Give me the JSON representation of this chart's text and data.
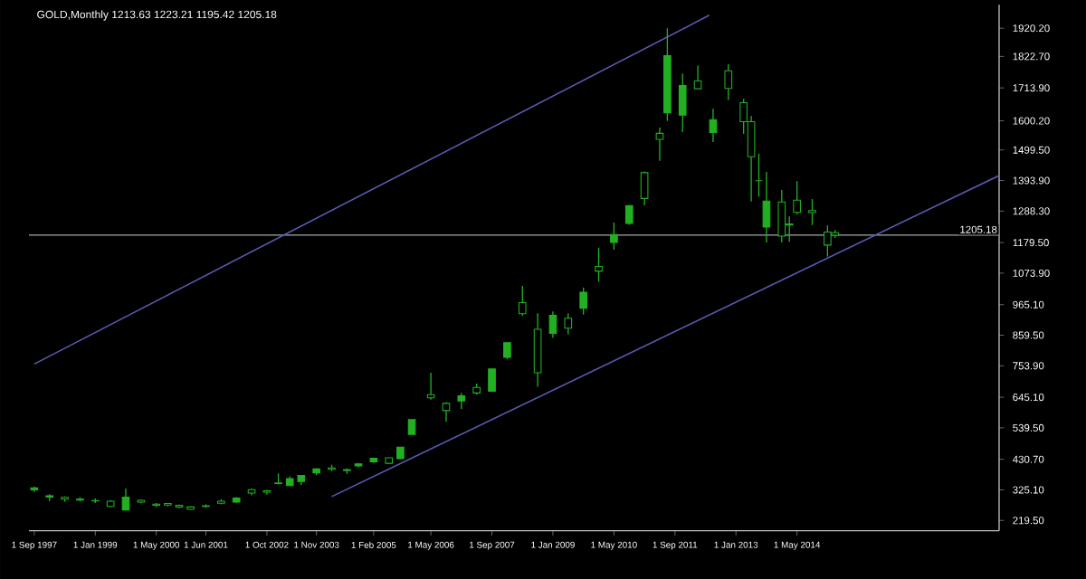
{
  "chart_data": {
    "type": "candlestick",
    "title": "GOLD,Monthly  1213.63 1223.21 1195.42 1205.18",
    "color": "#22b022",
    "x": [
      "1997-09",
      "1998-01",
      "1998-05",
      "1998-09",
      "1999-01",
      "1999-05",
      "1999-09",
      "2000-01",
      "2000-05",
      "2000-08",
      "2000-11",
      "2001-02",
      "2001-06",
      "2001-10",
      "2002-02",
      "2002-06",
      "2002-10",
      "2003-01",
      "2003-04",
      "2003-07",
      "2003-11",
      "2004-03",
      "2004-07",
      "2004-10",
      "2005-02",
      "2005-06",
      "2005-09",
      "2005-12",
      "2006-05",
      "2006-09",
      "2007-01",
      "2007-05",
      "2007-09",
      "2008-01",
      "2008-05",
      "2008-09",
      "2009-01",
      "2009-05",
      "2009-09",
      "2010-01",
      "2010-05",
      "2010-09",
      "2011-01",
      "2011-05",
      "2011-07",
      "2011-11",
      "2012-03",
      "2012-07",
      "2012-11",
      "2013-03",
      "2013-05",
      "2013-07",
      "2013-09",
      "2014-01",
      "2014-03",
      "2014-05",
      "2014-09",
      "2015-01",
      "2015-03"
    ],
    "ohlc": [
      [
        325,
        337,
        318,
        332
      ],
      [
        300,
        310,
        286,
        305
      ],
      [
        299,
        303,
        284,
        293
      ],
      [
        290,
        300,
        286,
        293
      ],
      [
        288,
        295,
        280,
        287
      ],
      [
        286,
        290,
        266,
        268
      ],
      [
        256,
        330,
        253,
        300
      ],
      [
        289,
        292,
        279,
        283
      ],
      [
        276,
        280,
        266,
        272
      ],
      [
        278,
        280,
        268,
        273
      ],
      [
        272,
        274,
        262,
        266
      ],
      [
        266,
        268,
        256,
        258
      ],
      [
        268,
        275,
        264,
        270
      ],
      [
        286,
        293,
        275,
        279
      ],
      [
        283,
        300,
        280,
        297
      ],
      [
        326,
        330,
        306,
        314
      ],
      [
        322,
        325,
        309,
        317
      ],
      [
        349,
        382,
        344,
        347
      ],
      [
        340,
        372,
        338,
        364
      ],
      [
        354,
        376,
        342,
        375
      ],
      [
        384,
        400,
        377,
        398
      ],
      [
        401,
        412,
        390,
        396
      ],
      [
        392,
        399,
        380,
        395
      ],
      [
        408,
        418,
        403,
        415
      ],
      [
        422,
        436,
        418,
        434
      ],
      [
        436,
        437,
        415,
        417
      ],
      [
        433,
        473,
        432,
        473
      ],
      [
        517,
        568,
        516,
        568
      ],
      [
        654,
        730,
        637,
        643
      ],
      [
        624,
        628,
        560,
        599
      ],
      [
        632,
        660,
        604,
        650
      ],
      [
        679,
        692,
        654,
        660
      ],
      [
        666,
        743,
        666,
        743
      ],
      [
        783,
        834,
        777,
        834
      ],
      [
        972,
        1030,
        926,
        934
      ],
      [
        880,
        935,
        681,
        730
      ],
      [
        866,
        942,
        850,
        928
      ],
      [
        918,
        935,
        863,
        884
      ],
      [
        953,
        1024,
        931,
        1008
      ],
      [
        1097,
        1162,
        1044,
        1081
      ],
      [
        1180,
        1249,
        1155,
        1207
      ],
      [
        1246,
        1307,
        1241,
        1307
      ],
      [
        1421,
        1425,
        1308,
        1332
      ],
      [
        1557,
        1577,
        1462,
        1536
      ],
      [
        1628,
        1920,
        1600,
        1825
      ],
      [
        1620,
        1764,
        1561,
        1722
      ],
      [
        1738,
        1791,
        1711,
        1711
      ],
      [
        1560,
        1642,
        1527,
        1604
      ],
      [
        1773,
        1796,
        1672,
        1712
      ],
      [
        1663,
        1676,
        1555,
        1597
      ],
      [
        1597,
        1617,
        1321,
        1476
      ],
      [
        1393,
        1487,
        1338,
        1393
      ],
      [
        1233,
        1424,
        1180,
        1323
      ],
      [
        1320,
        1361,
        1180,
        1202
      ],
      [
        1240,
        1270,
        1182,
        1244
      ],
      [
        1326,
        1392,
        1277,
        1284
      ],
      [
        1290,
        1330,
        1240,
        1283
      ],
      [
        1216,
        1239,
        1131,
        1171
      ],
      [
        1213.63,
        1223.21,
        1195.42,
        1205.18
      ]
    ],
    "series": [
      {
        "type": "line",
        "color": "#5a5ab4",
        "x": [
          "1997-09",
          "2012-06"
        ],
        "values": [
          760,
          1965
        ]
      },
      {
        "type": "line",
        "color": "#5a5ab4",
        "x": [
          "2004-03",
          "2018-10"
        ],
        "values": [
          302,
          1411
        ]
      }
    ],
    "ref_lines": [
      {
        "axis": "y",
        "value": 1205.18,
        "label": "1205.18",
        "color": "#a8a8a8"
      }
    ],
    "xlim": [
      "1997-07-20",
      "2018-10"
    ],
    "ylim": [
      184,
      2001
    ],
    "xticks": [
      {
        "value": "1997-09-01",
        "label": "1 Sep 1997"
      },
      {
        "value": "1999-01-01",
        "label": "1 Jan 1999"
      },
      {
        "value": "2000-05-01",
        "label": "1 May 2000"
      },
      {
        "value": "2001-06-01",
        "label": "1 Jun 2001"
      },
      {
        "value": "2002-10-01",
        "label": "1 Oct 2002"
      },
      {
        "value": "2003-11-01",
        "label": "1 Nov 2003"
      },
      {
        "value": "2005-02-01",
        "label": "1 Feb 2005"
      },
      {
        "value": "2006-05-01",
        "label": "1 May 2006"
      },
      {
        "value": "2007-09-01",
        "label": "1 Sep 2007"
      },
      {
        "value": "2009-01-01",
        "label": "1 Jan 2009"
      },
      {
        "value": "2010-05-01",
        "label": "1 May 2010"
      },
      {
        "value": "2011-09-01",
        "label": "1 Sep 2011"
      },
      {
        "value": "2013-01-01",
        "label": "1 Jan 2013"
      },
      {
        "value": "2014-05-01",
        "label": "1 May 2014"
      }
    ],
    "yticks": [
      {
        "value": 219.5,
        "label": "219.50"
      },
      {
        "value": 325.1,
        "label": "325.10"
      },
      {
        "value": 430.7,
        "label": "430.70"
      },
      {
        "value": 539.5,
        "label": "539.50"
      },
      {
        "value": 645.1,
        "label": "645.10"
      },
      {
        "value": 753.9,
        "label": "753.90"
      },
      {
        "value": 859.5,
        "label": "859.50"
      },
      {
        "value": 965.1,
        "label": "965.10"
      },
      {
        "value": 1073.9,
        "label": "1073.90"
      },
      {
        "value": 1179.5,
        "label": "1179.50"
      },
      {
        "value": 1288.3,
        "label": "1288.30"
      },
      {
        "value": 1393.9,
        "label": "1393.90"
      },
      {
        "value": 1499.5,
        "label": "1499.50"
      },
      {
        "value": 1600.2,
        "label": "1600.20"
      },
      {
        "value": 1713.9,
        "label": "1713.90"
      },
      {
        "value": 1822.7,
        "label": "1822.70"
      },
      {
        "value": 1920.2,
        "label": "1920.20"
      }
    ]
  }
}
